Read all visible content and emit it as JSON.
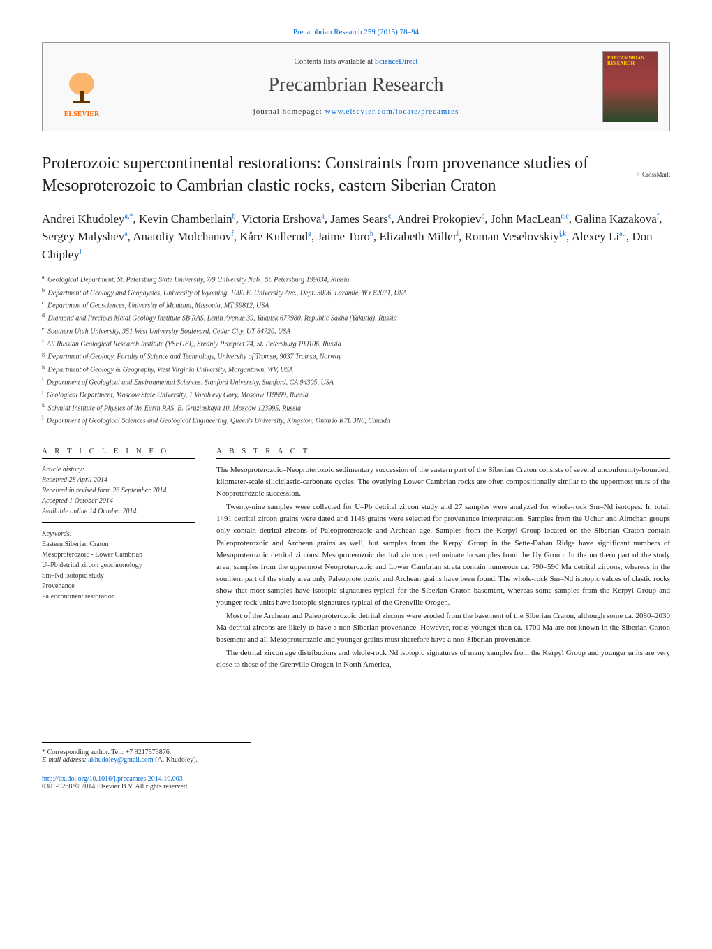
{
  "top_link": "Precambrian Research 259 (2015) 78–94",
  "header": {
    "contents_prefix": "Contents lists available at ",
    "contents_link": "ScienceDirect",
    "journal_title": "Precambrian Research",
    "homepage_prefix": "journal homepage: ",
    "homepage_link": "www.elsevier.com/locate/precamres",
    "elsevier_label": "ELSEVIER",
    "cover_text": "PRECAMBRIAN RESEARCH"
  },
  "crossmark_label": "CrossMark",
  "article_title": "Proterozoic supercontinental restorations: Constraints from provenance studies of Mesoproterozoic to Cambrian clastic rocks, eastern Siberian Craton",
  "authors_html": "Andrei Khudoley<sup>a,*</sup>, Kevin Chamberlain<sup>b</sup>, Victoria Ershova<sup>a</sup>, James Sears<sup>c</sup>, Andrei Prokopiev<sup>d</sup>, John MacLean<sup>c,e</sup>, Galina Kazakova<sup>f</sup>, Sergey Malyshev<sup>a</sup>, Anatoliy Molchanov<sup>f</sup>, Kåre Kullerud<sup>g</sup>, Jaime Toro<sup>h</sup>, Elizabeth Miller<sup>i</sup>, Roman Veselovskiy<sup>j,k</sup>, Alexey Li<sup>a,l</sup>, Don Chipley<sup>l</sup>",
  "affiliations": [
    {
      "sup": "a",
      "text": "Geological Department, St. Petersburg State University, 7/9 University Nab., St. Petersburg 199034, Russia"
    },
    {
      "sup": "b",
      "text": "Department of Geology and Geophysics, University of Wyoming, 1000 E. University Ave., Dept. 3006, Laramie, WY 82071, USA"
    },
    {
      "sup": "c",
      "text": "Department of Geosciences, University of Montana, Missoula, MT 59812, USA"
    },
    {
      "sup": "d",
      "text": "Diamond and Precious Metal Geology Institute SB RAS, Lenin Avenue 39, Yakutsk 677980, Republic Sakha (Yakutia), Russia"
    },
    {
      "sup": "e",
      "text": "Southern Utah University, 351 West University Boulevard, Cedar City, UT 84720, USA"
    },
    {
      "sup": "f",
      "text": "All Russian Geological Research Institute (VSEGEI), Sredniy Prospect 74, St. Petersburg 199106, Russia"
    },
    {
      "sup": "g",
      "text": "Department of Geology, Faculty of Science and Technology, University of Tromsø, 9037 Tromsø, Norway"
    },
    {
      "sup": "h",
      "text": "Department of Geology & Geography, West Virginia University, Morgantown, WV, USA"
    },
    {
      "sup": "i",
      "text": "Department of Geological and Environmental Sciences, Stanford University, Stanford, CA 94305, USA"
    },
    {
      "sup": "j",
      "text": "Geological Department, Moscow State University, 1 Vorob'evy Gory, Moscow 119899, Russia"
    },
    {
      "sup": "k",
      "text": "Schmidt Institute of Physics of the Earth RAS, B. Gruzinskaya 10, Moscow 123995, Russia"
    },
    {
      "sup": "l",
      "text": "Department of Geological Sciences and Geological Engineering, Queen's University, Kingston, Ontario K7L 3N6, Canada"
    }
  ],
  "article_info": {
    "heading": "A R T I C L E   I N F O",
    "history_label": "Article history:",
    "received": "Received 28 April 2014",
    "revised": "Received in revised form 26 September 2014",
    "accepted": "Accepted 1 October 2014",
    "online": "Available online 14 October 2014",
    "keywords_label": "Keywords:",
    "keywords": [
      "Eastern Siberian Craton",
      "Mesoproterozoic - Lower Cambrian",
      "U–Pb detrital zircon geochronology",
      "Sm–Nd isotopic study",
      "Provenance",
      "Paleocontinent restoration"
    ]
  },
  "abstract": {
    "heading": "A B S T R A C T",
    "paragraphs": [
      "The Mesoproterozoic–Neoproterozoic sedimentary succession of the eastern part of the Siberian Craton consists of several unconformity-bounded, kilometer-scale siliciclastic-carbonate cycles. The overlying Lower Cambrian rocks are often compositionally similar to the uppermost units of the Neoproterozoic succession.",
      "Twenty-nine samples were collected for U–Pb detrital zircon study and 27 samples were analyzed for whole-rock Sm–Nd isotopes. In total, 1491 detrital zircon grains were dated and 1148 grains were selected for provenance interpretation. Samples from the Uchur and Aimchan groups only contain detrital zircons of Paleoproterozoic and Archean age. Samples from the Kerpyl Group located on the Siberian Craton contain Paleoproterozoic and Archean grains as well, but samples from the Kerpyl Group in the Sette-Daban Ridge have significant numbers of Mesoproterozoic detrital zircons. Mesoproterozoic detrital zircons predominate in samples from the Uy Group. In the northern part of the study area, samples from the uppermost Neoproterozoic and Lower Cambrian strata contain numerous ca. 790–590 Ma detrital zircons, whereas in the southern part of the study area only Paleoproterozoic and Archean grains have been found. The whole-rock Sm–Nd isotopic values of clastic rocks show that most samples have isotopic signatures typical for the Siberian Craton basement, whereas some samples from the Kerpyl Group and younger rock units have isotopic signatures typical of the Grenville Orogen.",
      "Most of the Archean and Paleoproterozoic detrital zircons were eroded from the basement of the Siberian Craton, although some ca. 2080–2030 Ma detrital zircons are likely to have a non-Siberian provenance. However, rocks younger than ca. 1700 Ma are not known in the Siberian Craton basement and all Mesoproterozoic and younger grains must therefore have a non-Siberian provenance.",
      "The detrital zircon age distributions and whole-rock Nd isotopic signatures of many samples from the Kerpyl Group and younger units are very close to those of the Grenville Orogen in North America,"
    ]
  },
  "footer": {
    "corresponding": "* Corresponding author. Tel.: +7 9217573876.",
    "email_label": "E-mail address: ",
    "email": "akhudoley@gmail.com",
    "email_suffix": " (A. Khudoley).",
    "doi": "http://dx.doi.org/10.1016/j.precamres.2014.10.003",
    "copyright": "0301-9268/© 2014 Elsevier B.V. All rights reserved."
  }
}
